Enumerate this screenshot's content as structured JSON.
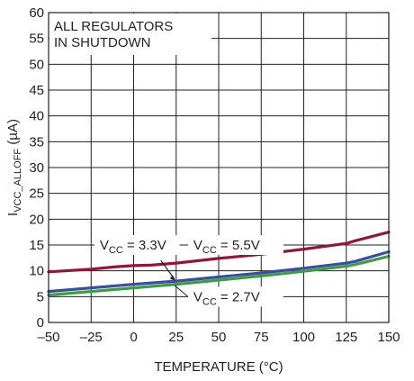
{
  "chart_data": {
    "type": "line",
    "xlabel": "TEMPERATURE (°C)",
    "ylabel": {
      "main": "I",
      "sub": "VCC_ALLOFF",
      "suffix": " (µA)"
    },
    "xlim": [
      -50,
      150
    ],
    "ylim": [
      0,
      60
    ],
    "x_ticks": [
      "–50",
      "–25",
      "0",
      "25",
      "50",
      "75",
      "100",
      "125",
      "150"
    ],
    "x_tick_values": [
      -50,
      -25,
      0,
      25,
      50,
      75,
      100,
      125,
      150
    ],
    "y_ticks": [
      "0",
      "5",
      "10",
      "15",
      "20",
      "25",
      "30",
      "35",
      "40",
      "45",
      "50",
      "55",
      "60"
    ],
    "y_tick_values": [
      0,
      5,
      10,
      15,
      20,
      25,
      30,
      35,
      40,
      45,
      50,
      55,
      60
    ],
    "grid": true,
    "annotation": [
      "ALL REGULATORS",
      "IN SHUTDOWN"
    ],
    "series": [
      {
        "label": {
          "main": "V",
          "sub": "CC",
          "suffix": " = 5.5V"
        },
        "color": "#8b1a3a",
        "x": [
          -50,
          -25,
          -10,
          0,
          10,
          25,
          50,
          75,
          100,
          125,
          130,
          150
        ],
        "y": [
          9.8,
          10.3,
          10.8,
          11.0,
          11.1,
          11.5,
          12.4,
          13.2,
          14.2,
          15.3,
          15.8,
          17.5
        ]
      },
      {
        "label": {
          "main": "V",
          "sub": "CC",
          "suffix": " = 3.3V"
        },
        "color": "#3a4f9a",
        "x": [
          -50,
          -25,
          0,
          25,
          50,
          75,
          100,
          125,
          130,
          150
        ],
        "y": [
          6.0,
          6.7,
          7.4,
          8.0,
          8.8,
          9.6,
          10.5,
          11.5,
          11.8,
          13.7
        ]
      },
      {
        "label": {
          "main": "V",
          "sub": "CC",
          "suffix": " = 2.7V"
        },
        "color": "#3f9a4a",
        "x": [
          -50,
          -25,
          0,
          25,
          50,
          75,
          100,
          125,
          130,
          150
        ],
        "y": [
          5.3,
          6.0,
          6.7,
          7.4,
          8.2,
          9.0,
          9.9,
          10.9,
          11.2,
          12.8
        ]
      }
    ]
  }
}
